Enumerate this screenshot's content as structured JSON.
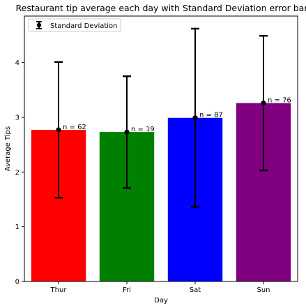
{
  "chart_data": {
    "type": "bar",
    "title": "Restaurant tip average each day with Standard Deviation error bar",
    "xlabel": "Day",
    "ylabel": "Average Tips",
    "categories": [
      "Thur",
      "Fri",
      "Sat",
      "Sun"
    ],
    "values": [
      2.77,
      2.73,
      2.99,
      3.26
    ],
    "error": [
      1.24,
      1.02,
      1.63,
      1.23
    ],
    "counts": [
      "n = 62",
      "n = 19",
      "n = 87",
      "n = 76"
    ],
    "colors": [
      "#ff0000",
      "#008000",
      "#0000ff",
      "#800080"
    ],
    "ylim": [
      0,
      4.85
    ],
    "yticks": [
      0,
      1,
      2,
      3,
      4
    ],
    "grid": false,
    "legend": {
      "position": "top-left",
      "label": "Standard Deviation"
    }
  }
}
